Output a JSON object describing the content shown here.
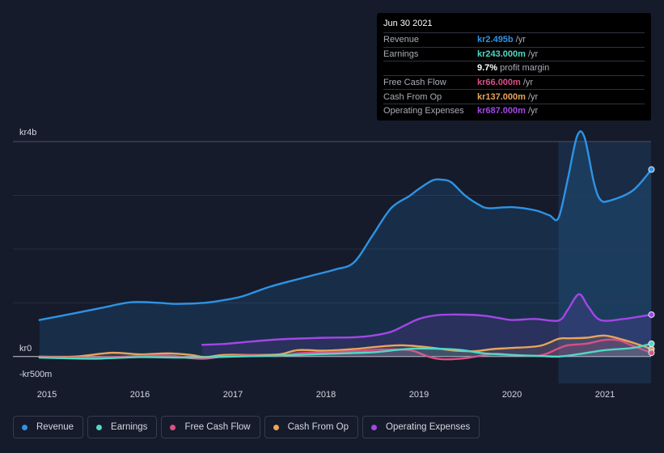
{
  "tooltip": {
    "date": "Jun 30 2021",
    "rows": [
      {
        "label": "Revenue",
        "value": "kr2.495b",
        "unit": "/yr",
        "color": "#2e93e6"
      },
      {
        "label": "Earnings",
        "value": "kr243.000m",
        "unit": "/yr",
        "color": "#4fd8c6"
      },
      {
        "label": "",
        "value": "9.7%",
        "unit": "profit margin",
        "color": "#ffffff"
      },
      {
        "label": "Free Cash Flow",
        "value": "kr66.000m",
        "unit": "/yr",
        "color": "#d94f86"
      },
      {
        "label": "Cash From Op",
        "value": "kr137.000m",
        "unit": "/yr",
        "color": "#e8a55a"
      },
      {
        "label": "Operating Expenses",
        "value": "kr687.000m",
        "unit": "/yr",
        "color": "#a346e6"
      }
    ]
  },
  "legend": [
    {
      "label": "Revenue",
      "color": "#2e93e6"
    },
    {
      "label": "Earnings",
      "color": "#4fd8c6"
    },
    {
      "label": "Free Cash Flow",
      "color": "#d94f86"
    },
    {
      "label": "Cash From Op",
      "color": "#e8a55a"
    },
    {
      "label": "Operating Expenses",
      "color": "#a346e6"
    }
  ],
  "chart_data": {
    "type": "area",
    "title": "",
    "y_tick_labels": [
      "kr4b",
      "kr0",
      "-kr500m"
    ],
    "x_tick_labels": [
      "2015",
      "2016",
      "2017",
      "2018",
      "2019",
      "2020",
      "2021"
    ],
    "xlim": [
      2014.9,
      2021.5
    ],
    "ylim": [
      -500,
      4000
    ],
    "units": "kr millions",
    "highlight_from": 2020.5,
    "series": [
      {
        "name": "Revenue",
        "color": "#2e93e6",
        "x": [
          2014.92,
          2015.25,
          2015.6,
          2015.9,
          2016.2,
          2016.4,
          2016.7,
          2016.9,
          2017.1,
          2017.4,
          2017.7,
          2017.9,
          2018.1,
          2018.3,
          2018.5,
          2018.7,
          2018.9,
          2019.0,
          2019.15,
          2019.25,
          2019.35,
          2019.5,
          2019.65,
          2019.75,
          2020.0,
          2020.25,
          2020.4,
          2020.5,
          2020.6,
          2020.7,
          2020.78,
          2020.88,
          2020.95,
          2021.05,
          2021.3,
          2021.5
        ],
        "y": [
          680,
          790,
          910,
          1010,
          1000,
          980,
          1000,
          1050,
          1120,
          1300,
          1440,
          1530,
          1620,
          1750,
          2250,
          2760,
          2990,
          3120,
          3280,
          3290,
          3240,
          2990,
          2820,
          2760,
          2780,
          2720,
          2630,
          2580,
          3300,
          4100,
          4080,
          3250,
          2920,
          2900,
          3090,
          3480
        ]
      },
      {
        "name": "Earnings",
        "color": "#4fd8c6",
        "x": [
          2014.92,
          2015.5,
          2016.0,
          2016.5,
          2017.0,
          2017.5,
          2018.0,
          2018.5,
          2018.8,
          2019.0,
          2019.4,
          2019.7,
          2020.0,
          2020.3,
          2020.5,
          2020.7,
          2021.0,
          2021.3,
          2021.5
        ],
        "y": [
          -20,
          -40,
          -10,
          -20,
          0,
          20,
          50,
          80,
          130,
          150,
          130,
          60,
          30,
          10,
          0,
          40,
          120,
          160,
          240
        ]
      },
      {
        "name": "Free Cash Flow",
        "color": "#d94f86",
        "x": [
          2014.92,
          2015.5,
          2016.0,
          2016.3,
          2016.55,
          2016.7,
          2016.9,
          2017.2,
          2017.5,
          2017.7,
          2018.0,
          2018.3,
          2018.6,
          2018.9,
          2019.1,
          2019.25,
          2019.5,
          2019.8,
          2020.0,
          2020.3,
          2020.5,
          2020.6,
          2020.8,
          2021.0,
          2021.15,
          2021.3,
          2021.5
        ],
        "y": [
          -10,
          -20,
          10,
          20,
          -30,
          -40,
          0,
          20,
          10,
          60,
          80,
          100,
          130,
          120,
          0,
          -50,
          -30,
          50,
          30,
          20,
          150,
          210,
          240,
          310,
          300,
          200,
          70
        ]
      },
      {
        "name": "Cash From Op",
        "color": "#e8a55a",
        "x": [
          2014.92,
          2015.3,
          2015.7,
          2016.0,
          2016.3,
          2016.55,
          2016.7,
          2016.9,
          2017.2,
          2017.5,
          2017.7,
          2018.0,
          2018.3,
          2018.6,
          2018.8,
          2019.0,
          2019.2,
          2019.4,
          2019.6,
          2019.8,
          2020.0,
          2020.3,
          2020.5,
          2020.6,
          2020.8,
          2021.0,
          2021.2,
          2021.35,
          2021.5
        ],
        "y": [
          0,
          0,
          70,
          40,
          60,
          30,
          -10,
          30,
          30,
          40,
          120,
          110,
          140,
          190,
          210,
          190,
          150,
          110,
          100,
          140,
          160,
          200,
          330,
          340,
          350,
          390,
          310,
          230,
          140
        ]
      },
      {
        "name": "Operating Expenses",
        "color": "#a346e6",
        "x": [
          2016.67,
          2016.9,
          2017.2,
          2017.5,
          2017.8,
          2018.0,
          2018.3,
          2018.5,
          2018.7,
          2018.85,
          2019.0,
          2019.2,
          2019.5,
          2019.7,
          2019.85,
          2020.0,
          2020.25,
          2020.5,
          2020.6,
          2020.72,
          2020.82,
          2020.95,
          2021.2,
          2021.5
        ],
        "y": [
          220,
          235,
          280,
          320,
          340,
          350,
          360,
          390,
          460,
          580,
          700,
          770,
          780,
          760,
          720,
          680,
          700,
          670,
          870,
          1160,
          930,
          680,
          700,
          780
        ]
      }
    ]
  }
}
